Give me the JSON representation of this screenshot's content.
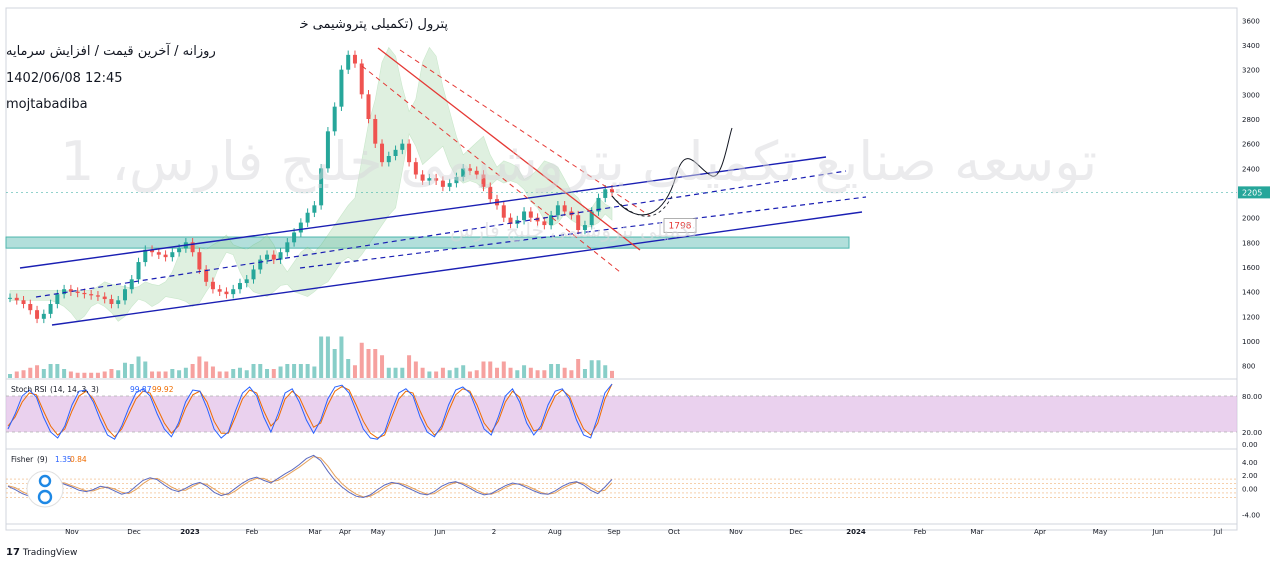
{
  "header": {
    "title": "پترول (تکمیلی پتروشیمی خلیج فارس) / سهام / محصولات شیمیایی / بورس تهران",
    "subtitle": "روزانه / آخرین قیمت / افزایش سرمایه",
    "datetime": "1402/06/08 12:45",
    "author": "mojtabadiba"
  },
  "watermark": {
    "main": "توسعه صنایع تکمیلی پتروشیمی خلیج فارس، 1",
    "secondary": "تکمیلی پتروشیمی خلیج فارس"
  },
  "colors": {
    "up": "#26a69a",
    "down": "#ef5350",
    "channel": "#1a1fb3",
    "trend_red": "#e53935",
    "cloud_green": "#a5d6a7",
    "cloud_red": "#f8bbd0",
    "stoch_band": "#e1bee7",
    "support_zone": "#b2dfdb"
  },
  "chart_data": [
    {
      "type": "line",
      "name": "price",
      "scale": "linear",
      "ylim": [
        700,
        3700
      ],
      "y_ticks": [
        "3600",
        "3400",
        "3200",
        "3000",
        "2800",
        "2600",
        "2400",
        "2200",
        "2000",
        "1800",
        "1600",
        "1400",
        "1200",
        "1000",
        "800"
      ],
      "last_price": "2205",
      "last_price_value": 2205,
      "support_label": "1798",
      "support_value": 1798,
      "x_ticks": [
        "Nov",
        "Dec",
        "2023",
        "Feb",
        "Mar",
        "Apr",
        "May",
        "Jun",
        "2",
        "Aug",
        "Sep",
        "Oct",
        "Nov",
        "Dec",
        "2024",
        "Feb",
        "Mar",
        "Apr",
        "May",
        "Jun",
        "Jul"
      ],
      "series": [
        {
          "values": [
            1350,
            1330,
            1300,
            1250,
            1180,
            1220,
            1300,
            1380,
            1420,
            1400,
            1390,
            1380,
            1370,
            1360,
            1340,
            1300,
            1330,
            1420,
            1500,
            1640,
            1740,
            1720,
            1700,
            1680,
            1720,
            1750,
            1800,
            1720,
            1580,
            1480,
            1420,
            1400,
            1380,
            1420,
            1470,
            1500,
            1580,
            1660,
            1700,
            1660,
            1720,
            1800,
            1880,
            1960,
            2040,
            2100,
            2400,
            2700,
            2900,
            3200,
            3320,
            3250,
            3000,
            2800,
            2600,
            2450,
            2500,
            2550,
            2600,
            2450,
            2350,
            2300,
            2320,
            2300,
            2250,
            2280,
            2330,
            2400,
            2380,
            2350,
            2250,
            2150,
            2100,
            2000,
            1950,
            1980,
            2050,
            2000,
            1970,
            1940,
            2020,
            2100,
            2050,
            2020,
            1900,
            1940,
            2050,
            2160,
            2230,
            2205
          ]
        }
      ]
    },
    {
      "type": "line",
      "name": "Stoch RSI",
      "params": "(14, 14, 3, 3)",
      "k_value": "99.87",
      "d_value": "99.92",
      "ylim": [
        0,
        100
      ],
      "y_ticks": [
        "80.00",
        "20.00",
        "0.00"
      ],
      "band": [
        20,
        80
      ],
      "series": [
        {
          "name": "K",
          "values": [
            25,
            50,
            80,
            90,
            78,
            45,
            20,
            10,
            30,
            65,
            88,
            90,
            70,
            40,
            15,
            8,
            30,
            60,
            85,
            92,
            80,
            50,
            25,
            12,
            35,
            70,
            90,
            88,
            60,
            25,
            10,
            20,
            55,
            85,
            95,
            80,
            45,
            20,
            50,
            85,
            92,
            70,
            40,
            18,
            40,
            75,
            95,
            98,
            85,
            55,
            25,
            10,
            8,
            20,
            55,
            85,
            92,
            80,
            45,
            20,
            12,
            30,
            65,
            90,
            95,
            85,
            55,
            25,
            15,
            45,
            80,
            92,
            70,
            35,
            15,
            30,
            65,
            88,
            92,
            75,
            40,
            15,
            10,
            45,
            85,
            99.87
          ]
        },
        {
          "name": "D",
          "values": [
            30,
            45,
            70,
            85,
            82,
            55,
            30,
            15,
            25,
            55,
            80,
            88,
            75,
            50,
            25,
            12,
            25,
            50,
            75,
            88,
            85,
            60,
            35,
            18,
            30,
            60,
            82,
            88,
            70,
            38,
            18,
            18,
            45,
            75,
            90,
            85,
            55,
            30,
            42,
            75,
            88,
            78,
            52,
            28,
            35,
            65,
            88,
            96,
            90,
            65,
            38,
            18,
            10,
            15,
            45,
            75,
            88,
            85,
            55,
            30,
            15,
            25,
            55,
            82,
            92,
            88,
            65,
            35,
            20,
            38,
            70,
            88,
            78,
            45,
            22,
            25,
            55,
            80,
            90,
            80,
            50,
            25,
            15,
            35,
            75,
            99.92
          ]
        }
      ]
    },
    {
      "type": "line",
      "name": "Fisher",
      "params": "(9)",
      "fisher_value": "1.35",
      "trigger_value": "0.84",
      "ylim": [
        -4.5,
        5.2
      ],
      "y_ticks": [
        "4.00",
        "2.00",
        "0.00",
        "-4.00"
      ],
      "series": [
        {
          "name": "fisher",
          "values": [
            0.3,
            -0.2,
            -0.8,
            -1.2,
            -0.6,
            0.2,
            0.9,
            1.0,
            0.6,
            0.2,
            -0.3,
            -0.5,
            -0.2,
            0.3,
            0.1,
            -0.4,
            -0.9,
            -0.6,
            0.3,
            1.2,
            1.6,
            1.3,
            0.5,
            -0.2,
            -0.5,
            0.0,
            0.6,
            0.9,
            0.3,
            -0.6,
            -1.1,
            -0.8,
            0.0,
            0.8,
            1.4,
            1.7,
            1.2,
            0.8,
            1.5,
            2.2,
            2.8,
            3.6,
            4.5,
            5.0,
            4.2,
            2.6,
            1.2,
            0.2,
            -0.6,
            -1.2,
            -1.4,
            -1.0,
            -0.2,
            0.5,
            0.9,
            0.7,
            0.2,
            -0.3,
            -0.8,
            -1.0,
            -0.5,
            0.3,
            0.8,
            1.0,
            0.6,
            0.0,
            -0.6,
            -1.0,
            -0.8,
            -0.2,
            0.4,
            0.8,
            0.6,
            0.1,
            -0.4,
            -0.8,
            -0.9,
            -0.4,
            0.3,
            0.8,
            1.0,
            0.5,
            -0.3,
            -0.8,
            0.2,
            1.35
          ]
        },
        {
          "name": "trigger",
          "values": [
            0.4,
            0.1,
            -0.5,
            -1.0,
            -0.9,
            -0.2,
            0.5,
            0.9,
            0.8,
            0.4,
            0.0,
            -0.4,
            -0.4,
            0.0,
            0.2,
            -0.1,
            -0.6,
            -0.8,
            -0.2,
            0.7,
            1.4,
            1.5,
            0.9,
            0.2,
            -0.3,
            -0.3,
            0.3,
            0.8,
            0.6,
            -0.1,
            -0.8,
            -1.0,
            -0.4,
            0.4,
            1.1,
            1.5,
            1.5,
            1.0,
            1.2,
            1.8,
            2.5,
            3.2,
            4.0,
            4.8,
            4.6,
            3.4,
            1.9,
            0.7,
            -0.2,
            -0.9,
            -1.3,
            -1.2,
            -0.6,
            0.1,
            0.7,
            0.8,
            0.5,
            0.0,
            -0.5,
            -0.9,
            -0.8,
            -0.1,
            0.5,
            0.9,
            0.8,
            0.3,
            -0.3,
            -0.8,
            -0.9,
            -0.5,
            0.1,
            0.6,
            0.7,
            0.4,
            -0.1,
            -0.6,
            -0.9,
            -0.7,
            0.0,
            0.5,
            0.9,
            0.8,
            0.1,
            -0.5,
            -0.3,
            0.84
          ]
        }
      ]
    }
  ],
  "footer": {
    "brand": "TradingView",
    "brand_mark": "17"
  }
}
